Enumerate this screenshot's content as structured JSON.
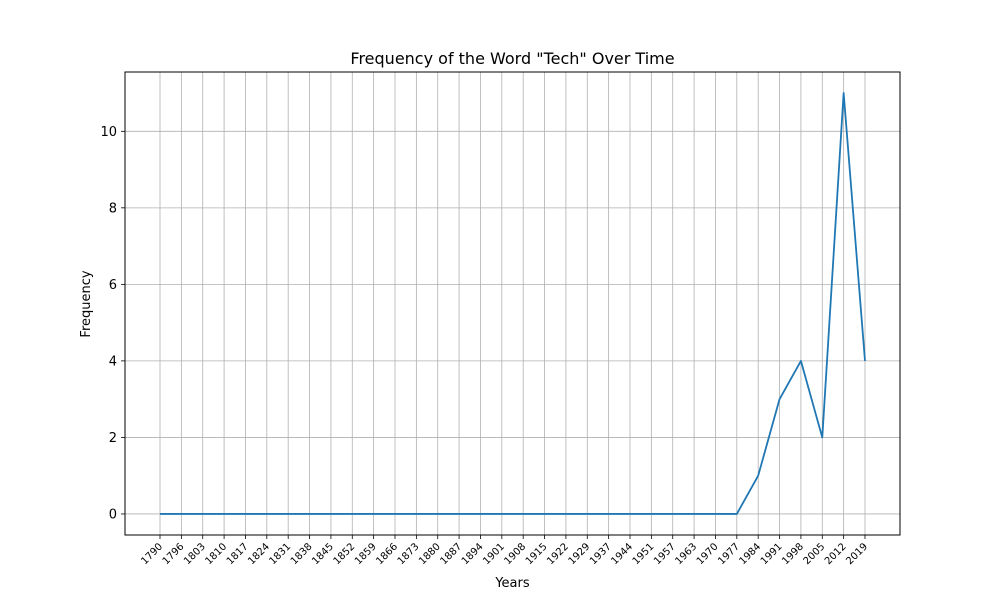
{
  "chart_data": {
    "type": "line",
    "title": "Frequency of the Word \"Tech\" Over Time",
    "xlabel": "Years",
    "ylabel": "Frequency",
    "x": [
      "1790",
      "1796",
      "1803",
      "1810",
      "1817",
      "1824",
      "1831",
      "1838",
      "1845",
      "1852",
      "1859",
      "1866",
      "1873",
      "1880",
      "1887",
      "1894",
      "1901",
      "1908",
      "1915",
      "1922",
      "1929",
      "1937",
      "1944",
      "1951",
      "1957",
      "1963",
      "1970",
      "1977",
      "1984",
      "1991",
      "1998",
      "2005",
      "2012",
      "2019"
    ],
    "series": [
      {
        "values": [
          0,
          0,
          0,
          0,
          0,
          0,
          0,
          0,
          0,
          0,
          0,
          0,
          0,
          0,
          0,
          0,
          0,
          0,
          0,
          0,
          0,
          0,
          0,
          0,
          0,
          0,
          0,
          0,
          1,
          3,
          4,
          2,
          11,
          4
        ]
      }
    ],
    "yticks": [
      0,
      2,
      4,
      6,
      8,
      10
    ],
    "ylim": [
      -0.55,
      11.55
    ],
    "grid": true,
    "line_color": "#1f77b4",
    "grid_color": "#b0b0b0"
  }
}
